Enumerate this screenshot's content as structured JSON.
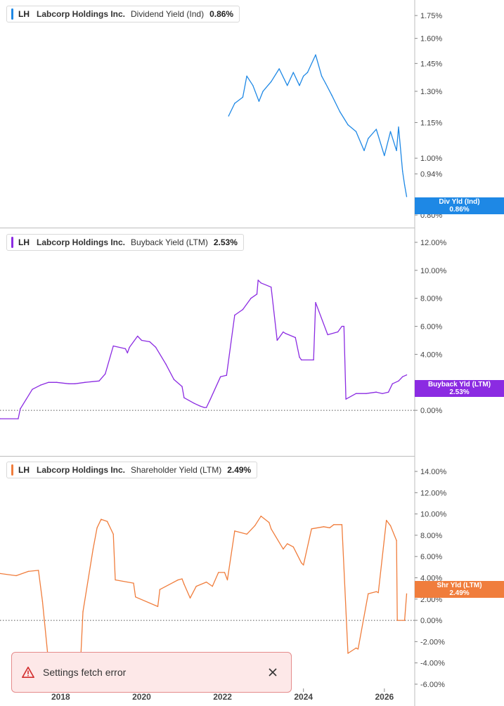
{
  "chart_data": [
    {
      "type": "line",
      "ticker": "LH",
      "company": "Labcorp Holdings Inc.",
      "metric": "Dividend Yield (Ind)",
      "current_value": "0.86%",
      "tag_label": "Div Yld (Ind)",
      "color": "#1e88e5",
      "yscale": "log",
      "ylim": [
        0.77,
        1.86
      ],
      "yticks": [
        0.8,
        0.94,
        1.0,
        1.15,
        1.3,
        1.45,
        1.6,
        1.75
      ],
      "ytick_labels": [
        "0.80%",
        "0.94%",
        "1.00%",
        "1.15%",
        "1.30%",
        "1.45%",
        "1.60%",
        "1.75%"
      ],
      "series": [
        {
          "x": [
            2022.15,
            2022.3,
            2022.5,
            2022.6,
            2022.75,
            2022.9,
            2023.0,
            2023.2,
            2023.4,
            2023.6,
            2023.75,
            2023.9,
            2024.0,
            2024.1,
            2024.3,
            2024.45,
            2024.55,
            2024.7,
            2024.9,
            2025.1,
            2025.3,
            2025.5,
            2025.6,
            2025.8,
            2026.0,
            2026.15,
            2026.3,
            2026.35,
            2026.45,
            2026.5,
            2026.55
          ],
          "y": [
            1.18,
            1.24,
            1.27,
            1.38,
            1.33,
            1.25,
            1.3,
            1.35,
            1.42,
            1.33,
            1.4,
            1.33,
            1.38,
            1.4,
            1.5,
            1.38,
            1.34,
            1.28,
            1.2,
            1.14,
            1.11,
            1.03,
            1.08,
            1.12,
            1.01,
            1.11,
            1.03,
            1.13,
            0.95,
            0.9,
            0.86
          ]
        }
      ]
    },
    {
      "type": "line",
      "ticker": "LH",
      "company": "Labcorp Holdings Inc.",
      "metric": "Buyback Yield (LTM)",
      "current_value": "2.53%",
      "tag_label": "Buyback Yld (LTM)",
      "color": "#8b2be2",
      "ylim": [
        -1.8,
        12.4
      ],
      "yticks": [
        0,
        2,
        4,
        6,
        8,
        10,
        12
      ],
      "ytick_labels": [
        "0.00%",
        "2.00%",
        "4.00%",
        "6.00%",
        "8.00%",
        "10.00%",
        "12.00%"
      ],
      "baseline": 0,
      "series": [
        {
          "x": [
            2016.5,
            2016.95,
            2017.0,
            2017.15,
            2017.3,
            2017.5,
            2017.7,
            2017.9,
            2018.2,
            2018.35,
            2018.6,
            2018.95,
            2019.1,
            2019.3,
            2019.6,
            2019.65,
            2019.7,
            2019.9,
            2020.0,
            2020.2,
            2020.35,
            2020.6,
            2020.8,
            2021.0,
            2021.05,
            2021.3,
            2021.45,
            2021.55,
            2021.6,
            2021.7,
            2021.95,
            2022.1,
            2022.3,
            2022.5,
            2022.7,
            2022.85,
            2022.88,
            2022.95,
            2023.2,
            2023.35,
            2023.5,
            2023.55,
            2023.8,
            2023.9,
            2023.95,
            2024.25,
            2024.3,
            2024.6,
            2024.85,
            2024.95,
            2025.0,
            2025.05,
            2025.3,
            2025.55,
            2025.8,
            2025.95,
            2026.1,
            2026.2,
            2026.35,
            2026.45,
            2026.55
          ],
          "y": [
            -0.6,
            -0.6,
            0.1,
            0.8,
            1.5,
            1.8,
            2.0,
            2.0,
            1.9,
            1.9,
            2.0,
            2.1,
            2.6,
            4.6,
            4.4,
            4.1,
            4.5,
            5.3,
            5.0,
            4.9,
            4.5,
            3.3,
            2.2,
            1.7,
            0.9,
            0.5,
            0.3,
            0.2,
            0.2,
            0.8,
            2.4,
            2.5,
            6.8,
            7.2,
            8.0,
            8.3,
            9.3,
            9.1,
            8.8,
            5.0,
            5.6,
            5.5,
            5.2,
            3.8,
            3.6,
            3.6,
            7.7,
            5.4,
            5.6,
            6.0,
            6.0,
            0.8,
            1.2,
            1.2,
            1.3,
            1.2,
            1.3,
            1.9,
            2.1,
            2.4,
            2.53
          ]
        }
      ]
    },
    {
      "type": "line",
      "ticker": "LH",
      "company": "Labcorp Holdings Inc.",
      "metric": "Shareholder Yield (LTM)",
      "current_value": "2.49%",
      "tag_label": "Shr Yld (LTM)",
      "color": "#f07d3c",
      "ylim": [
        -6.4,
        14.4
      ],
      "yticks": [
        -6,
        -4,
        -2,
        0,
        2,
        4,
        6,
        8,
        10,
        12,
        14
      ],
      "ytick_labels": [
        "-6.00%",
        "-4.00%",
        "-2.00%",
        "0.00%",
        "2.00%",
        "4.00%",
        "6.00%",
        "8.00%",
        "10.00%",
        "12.00%",
        "14.00%"
      ],
      "baseline": 0,
      "x_ticks": [
        2018,
        2020,
        2022,
        2024,
        2026
      ],
      "x_tick_labels": [
        "2018",
        "2020",
        "2022",
        "2024",
        "2026"
      ],
      "series": [
        {
          "x": [
            2016.5,
            2016.9,
            2017.2,
            2017.45,
            2017.55,
            2017.7,
            2017.95,
            2018.5,
            2018.55,
            2018.8,
            2018.9,
            2019.0,
            2019.15,
            2019.3,
            2019.35,
            2019.8,
            2019.85,
            2020.4,
            2020.45,
            2020.8,
            2020.9,
            2021.0,
            2021.05,
            2021.2,
            2021.35,
            2021.6,
            2021.75,
            2021.9,
            2022.05,
            2022.12,
            2022.3,
            2022.6,
            2022.8,
            2022.95,
            2023.15,
            2023.2,
            2023.5,
            2023.6,
            2023.75,
            2023.95,
            2024.0,
            2024.2,
            2024.5,
            2024.65,
            2024.75,
            2024.95,
            2025.1,
            2025.3,
            2025.35,
            2025.6,
            2025.8,
            2025.85,
            2026.05,
            2026.15,
            2026.3,
            2026.32,
            2026.5,
            2026.55
          ],
          "y": [
            4.4,
            4.2,
            4.6,
            4.7,
            1.8,
            -4.0,
            -3.6,
            -3.2,
            0.8,
            6.7,
            8.7,
            9.5,
            9.3,
            8.1,
            3.8,
            3.5,
            2.2,
            1.3,
            2.9,
            3.6,
            3.8,
            3.9,
            3.4,
            2.1,
            3.2,
            3.6,
            3.2,
            4.5,
            4.5,
            3.8,
            8.4,
            8.1,
            8.9,
            9.8,
            9.2,
            8.6,
            6.7,
            7.2,
            6.9,
            5.4,
            5.2,
            8.6,
            8.8,
            8.7,
            9.0,
            9.0,
            -3.1,
            -2.6,
            -2.7,
            2.5,
            2.7,
            2.6,
            9.4,
            8.9,
            7.5,
            0.0,
            0.0,
            2.49
          ]
        }
      ]
    }
  ],
  "toast": {
    "message": "Settings fetch error"
  }
}
